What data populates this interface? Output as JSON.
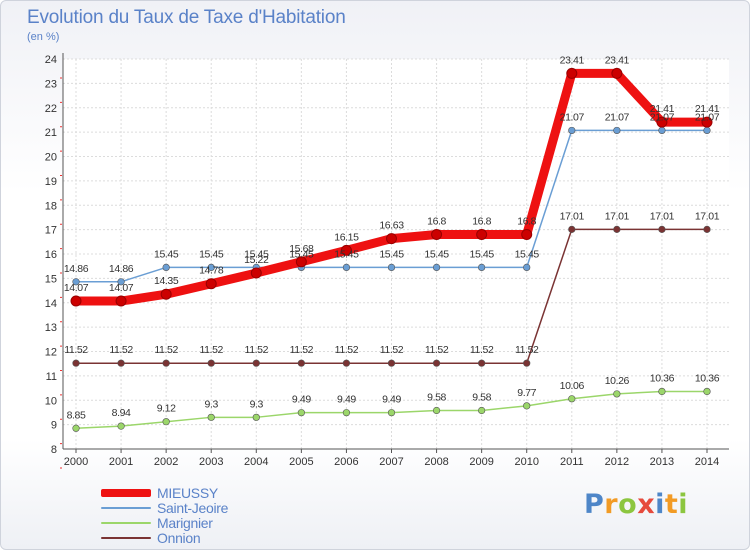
{
  "header": {
    "title": "Evolution du Taux de Taxe d'Habitation",
    "subtitle": "(en %)"
  },
  "logo": {
    "letters": [
      "P",
      "r",
      "o",
      "x",
      "i",
      "t",
      "i"
    ],
    "colors": [
      "#4e86c8",
      "#f29b25",
      "#8cc63f",
      "#e64a3c",
      "#4e86c8",
      "#f29b25",
      "#8cc63f"
    ]
  },
  "chart_data": {
    "type": "line",
    "title": "Evolution du Taux de Taxe d'Habitation",
    "ylabel": "(en %)",
    "xlabel": "",
    "ylim": [
      8,
      24
    ],
    "yticks": [
      8,
      9,
      10,
      11,
      12,
      13,
      14,
      15,
      16,
      17,
      18,
      19,
      20,
      21,
      22,
      23,
      24
    ],
    "x": [
      "2000",
      "2001",
      "2002",
      "2003",
      "2004",
      "2005",
      "2006",
      "2007",
      "2008",
      "2009",
      "2010",
      "2011",
      "2012",
      "2013",
      "2014"
    ],
    "grid": true,
    "legend": "bottom-left",
    "series": [
      {
        "name": "MIEUSSY",
        "color": "#ee1111",
        "values": [
          14.07,
          14.07,
          14.35,
          14.78,
          15.22,
          15.68,
          16.15,
          16.63,
          16.8,
          16.8,
          16.8,
          23.41,
          23.41,
          21.41,
          21.41
        ],
        "labels": [
          "14.07",
          "14.07",
          "14.35",
          "14.78",
          "15.22",
          "15.68",
          "16.15",
          "16.63",
          "16.8",
          "16.8",
          "16.8",
          "23.41",
          "23.41",
          "21.41",
          "21.41"
        ]
      },
      {
        "name": "Saint-Jeoire",
        "color": "#6a9ed4",
        "values": [
          14.86,
          14.86,
          15.45,
          15.45,
          15.45,
          15.45,
          15.45,
          15.45,
          15.45,
          15.45,
          15.45,
          21.07,
          21.07,
          21.07,
          21.07
        ],
        "labels": [
          "14.86",
          "14.86",
          "15.45",
          "15.45",
          "15.45",
          "15.45",
          "15.45",
          "15.45",
          "15.45",
          "15.45",
          "15.45",
          "21.07",
          "21.07",
          "21.07",
          "21.07"
        ]
      },
      {
        "name": "Marignier",
        "color": "#9bd66a",
        "values": [
          8.85,
          8.94,
          9.12,
          9.3,
          9.3,
          9.49,
          9.49,
          9.49,
          9.58,
          9.58,
          9.77,
          10.06,
          10.26,
          10.36,
          10.36
        ],
        "labels": [
          "8.85",
          "8.94",
          "9.12",
          "9.3",
          "9.3",
          "9.49",
          "9.49",
          "9.49",
          "9.58",
          "9.58",
          "9.77",
          "10.06",
          "10.26",
          "10.36",
          "10.36"
        ]
      },
      {
        "name": "Onnion",
        "color": "#7a3333",
        "values": [
          11.52,
          11.52,
          11.52,
          11.52,
          11.52,
          11.52,
          11.52,
          11.52,
          11.52,
          11.52,
          11.52,
          17.01,
          17.01,
          17.01,
          17.01
        ],
        "labels": [
          "11.52",
          "11.52",
          "11.52",
          "11.52",
          "11.52",
          "11.52",
          "11.52",
          "11.52",
          "11.52",
          "11.52",
          "11.52",
          "17.01",
          "17.01",
          "17.01",
          "17.01"
        ]
      }
    ]
  }
}
